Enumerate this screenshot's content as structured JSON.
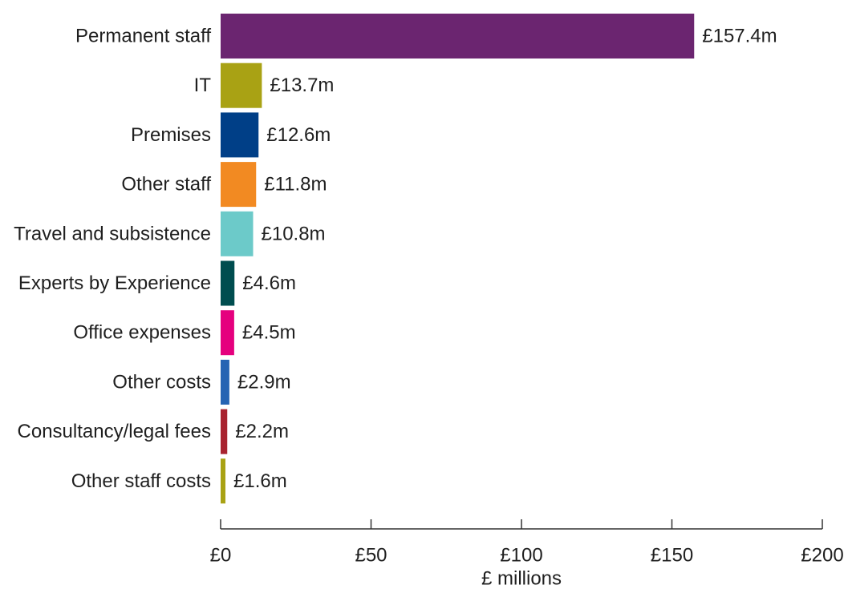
{
  "chart_data": {
    "type": "bar",
    "orientation": "horizontal",
    "categories": [
      "Permanent staff",
      "IT",
      "Premises",
      "Other staff",
      "Travel and subsistence",
      "Experts by Experience",
      "Office expenses",
      "Other costs",
      "Consultancy/legal fees",
      "Other staff costs"
    ],
    "values": [
      157.4,
      13.7,
      12.6,
      11.8,
      10.8,
      4.6,
      4.5,
      2.9,
      2.2,
      1.6
    ],
    "value_labels": [
      "£157.4m",
      "£13.7m",
      "£12.6m",
      "£11.8m",
      "£10.8m",
      "£4.6m",
      "£4.5m",
      "£2.9m",
      "£2.2m",
      "£1.6m"
    ],
    "bar_colors": [
      "#6b2570",
      "#a9a214",
      "#003f87",
      "#f28a22",
      "#6ccac9",
      "#004d4f",
      "#e5007e",
      "#2563b3",
      "#a8232f",
      "#a9a214"
    ],
    "x_ticks": [
      0,
      50,
      100,
      150,
      200
    ],
    "x_tick_labels": [
      "£0",
      "£50",
      "£100",
      "£150",
      "£200"
    ],
    "xlim": [
      0,
      200
    ],
    "xlabel": "£ millions",
    "ylabel": "",
    "title": "",
    "grid": false,
    "legend": "none"
  }
}
